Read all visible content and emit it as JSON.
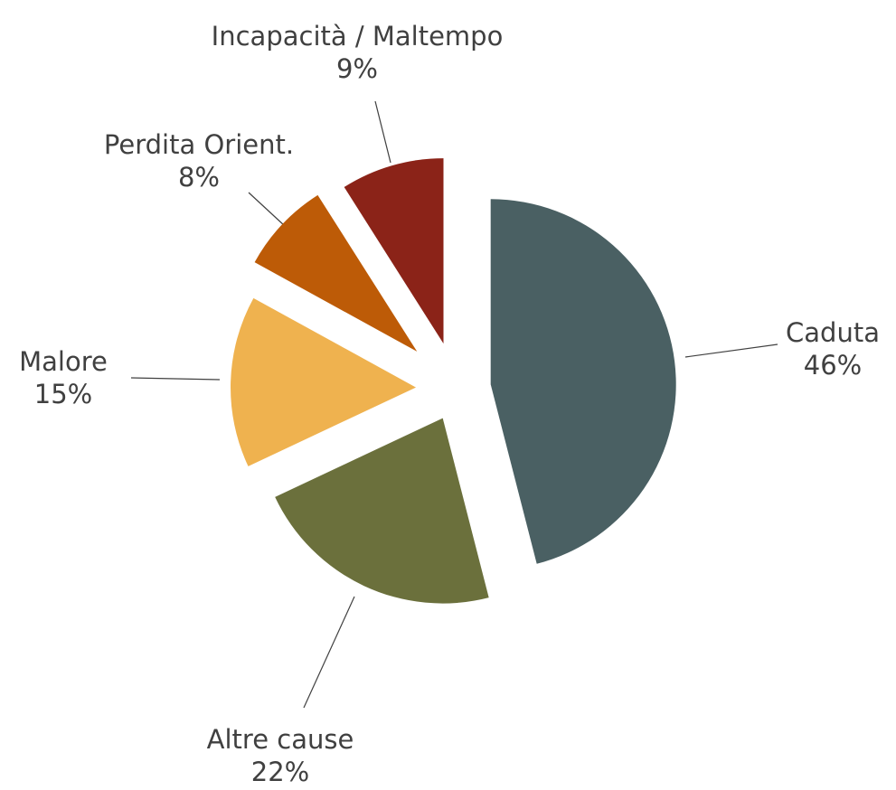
{
  "chart_data": {
    "type": "pie",
    "categories": [
      "Caduta",
      "Altre cause",
      "Malore",
      "Perdita Orient.",
      "Incapacità / Maltempo"
    ],
    "values": [
      46,
      22,
      15,
      8,
      9
    ],
    "value_labels": [
      "46%",
      "22%",
      "15%",
      "8%",
      "9%"
    ],
    "colors": [
      "#4a6063",
      "#6b703c",
      "#efb24f",
      "#bd5b07",
      "#8b2318"
    ]
  }
}
